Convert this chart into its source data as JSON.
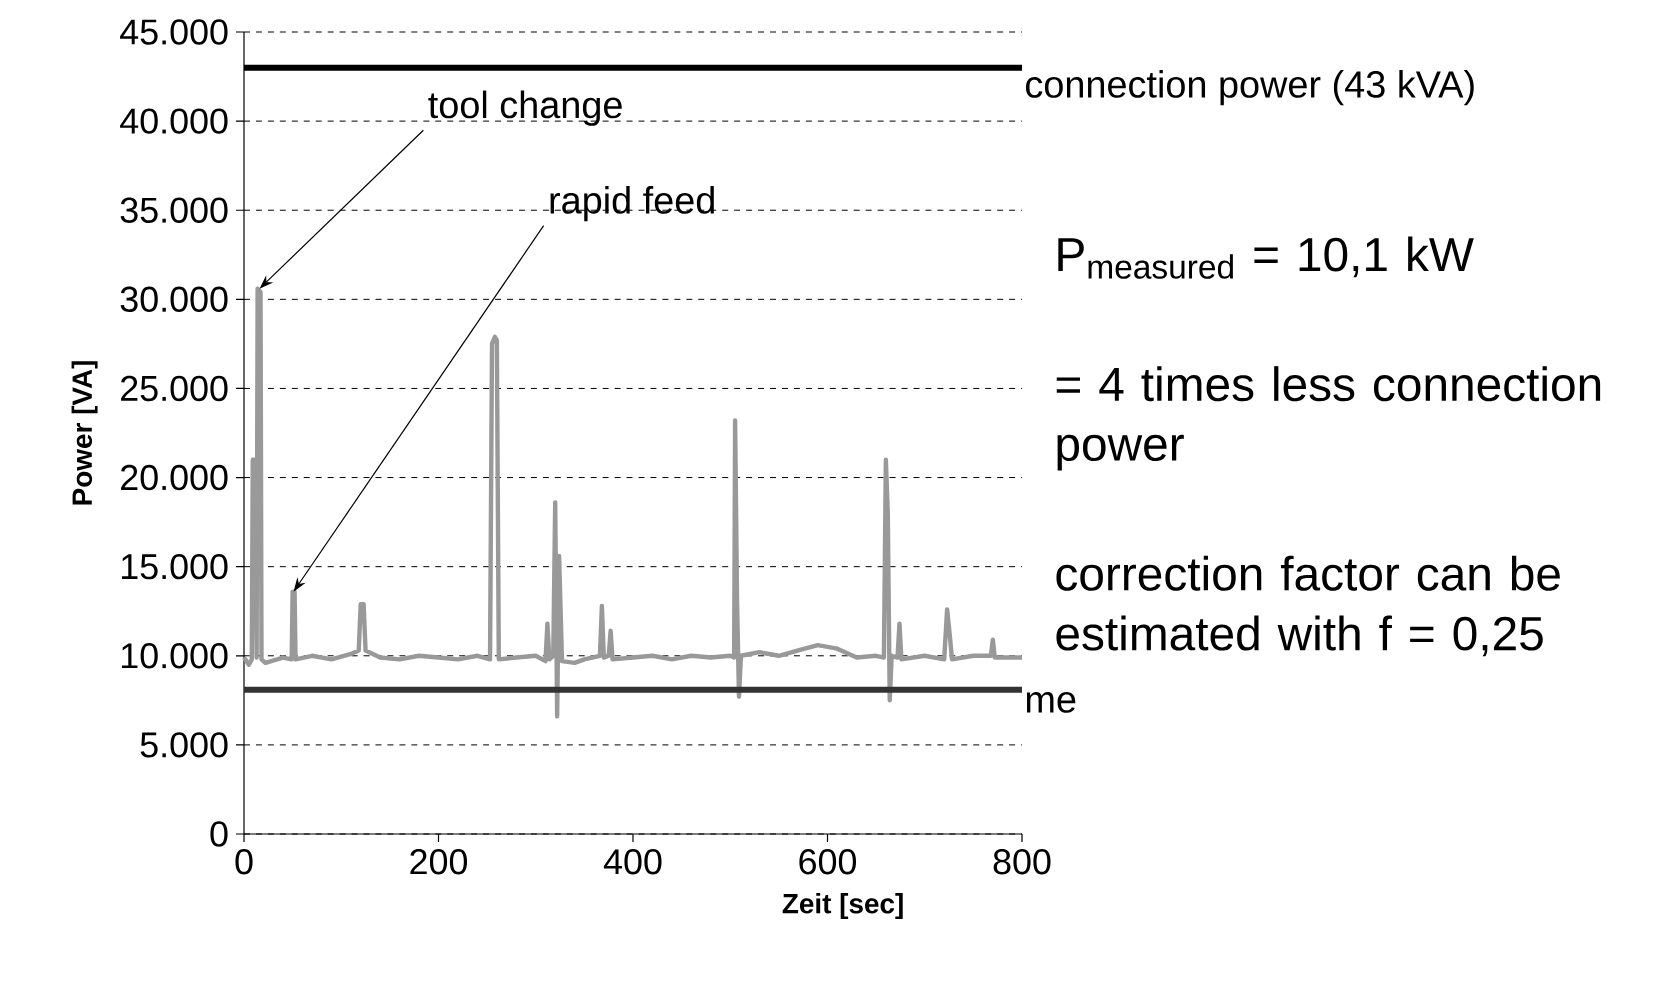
{
  "chart_data": {
    "type": "line",
    "xlabel": "Zeit [sec]",
    "ylabel": "Power [VA]",
    "xlim": [
      0,
      800
    ],
    "ylim": [
      0,
      45000
    ],
    "xticks": [
      0,
      200,
      400,
      600,
      800
    ],
    "yticks": [
      {
        "value": 0,
        "label": "0"
      },
      {
        "value": 5000,
        "label": "5.000"
      },
      {
        "value": 10000,
        "label": "10.000"
      },
      {
        "value": 15000,
        "label": "15.000"
      },
      {
        "value": 20000,
        "label": "20.000"
      },
      {
        "value": 25000,
        "label": "25.000"
      },
      {
        "value": 30000,
        "label": "30.000"
      },
      {
        "value": 35000,
        "label": "35.000"
      },
      {
        "value": 40000,
        "label": "40.000"
      },
      {
        "value": 45000,
        "label": "45.000"
      }
    ],
    "grid": "y",
    "x": [
      0,
      5,
      8,
      9,
      11,
      13,
      14,
      17,
      18,
      22,
      40,
      49,
      50,
      52,
      53,
      70,
      90,
      110,
      118,
      120,
      123,
      125,
      140,
      160,
      180,
      200,
      220,
      240,
      253,
      255,
      258,
      260,
      262,
      280,
      300,
      310,
      312,
      314,
      318,
      320,
      322,
      324,
      327,
      340,
      350,
      366,
      368,
      370,
      375,
      377,
      379,
      400,
      420,
      440,
      460,
      480,
      500,
      504,
      505,
      507,
      509,
      511,
      530,
      550,
      570,
      590,
      610,
      630,
      650,
      658,
      660,
      662,
      664,
      666,
      672,
      674,
      676,
      700,
      720,
      723,
      726,
      728,
      750,
      768,
      770,
      772,
      800
    ],
    "series": [
      {
        "color": "#999999",
        "values": [
          9900,
          9500,
          9800,
          21000,
          21000,
          9900,
          30600,
          30400,
          9800,
          9600,
          9900,
          9800,
          13600,
          13600,
          9800,
          10000,
          9800,
          10100,
          10300,
          12900,
          12900,
          10300,
          9900,
          9800,
          10000,
          9900,
          9800,
          10000,
          9800,
          27500,
          27900,
          27700,
          9800,
          9900,
          10000,
          9700,
          11800,
          9800,
          10000,
          18600,
          6600,
          15600,
          9700,
          9600,
          9800,
          10000,
          12800,
          9900,
          10000,
          11400,
          9800,
          9900,
          10000,
          9800,
          10000,
          9900,
          10000,
          9900,
          23200,
          13000,
          7700,
          10000,
          10200,
          10000,
          10300,
          10600,
          10400,
          9900,
          10000,
          9900,
          21000,
          18000,
          7500,
          10000,
          9900,
          11800,
          9800,
          10000,
          9800,
          12600,
          11000,
          9800,
          10000,
          10000,
          10900,
          9900,
          9900
        ]
      }
    ],
    "ref_lines": [
      {
        "axis": "y",
        "value": 43000,
        "label": "connection power (43 kVA)",
        "color": "#000000"
      },
      {
        "axis": "y",
        "value": 8100,
        "label": "me",
        "color": "#333333"
      }
    ],
    "annotations": [
      {
        "text": "tool change",
        "x": 16,
        "y": 30600
      },
      {
        "text": "rapid feed",
        "x": 51,
        "y": 13600
      },
      "P$_{measured}$ = 10,1 kW",
      "= 4 times less connection power",
      "correction factor can be estimated with f = 0,25"
    ]
  }
}
